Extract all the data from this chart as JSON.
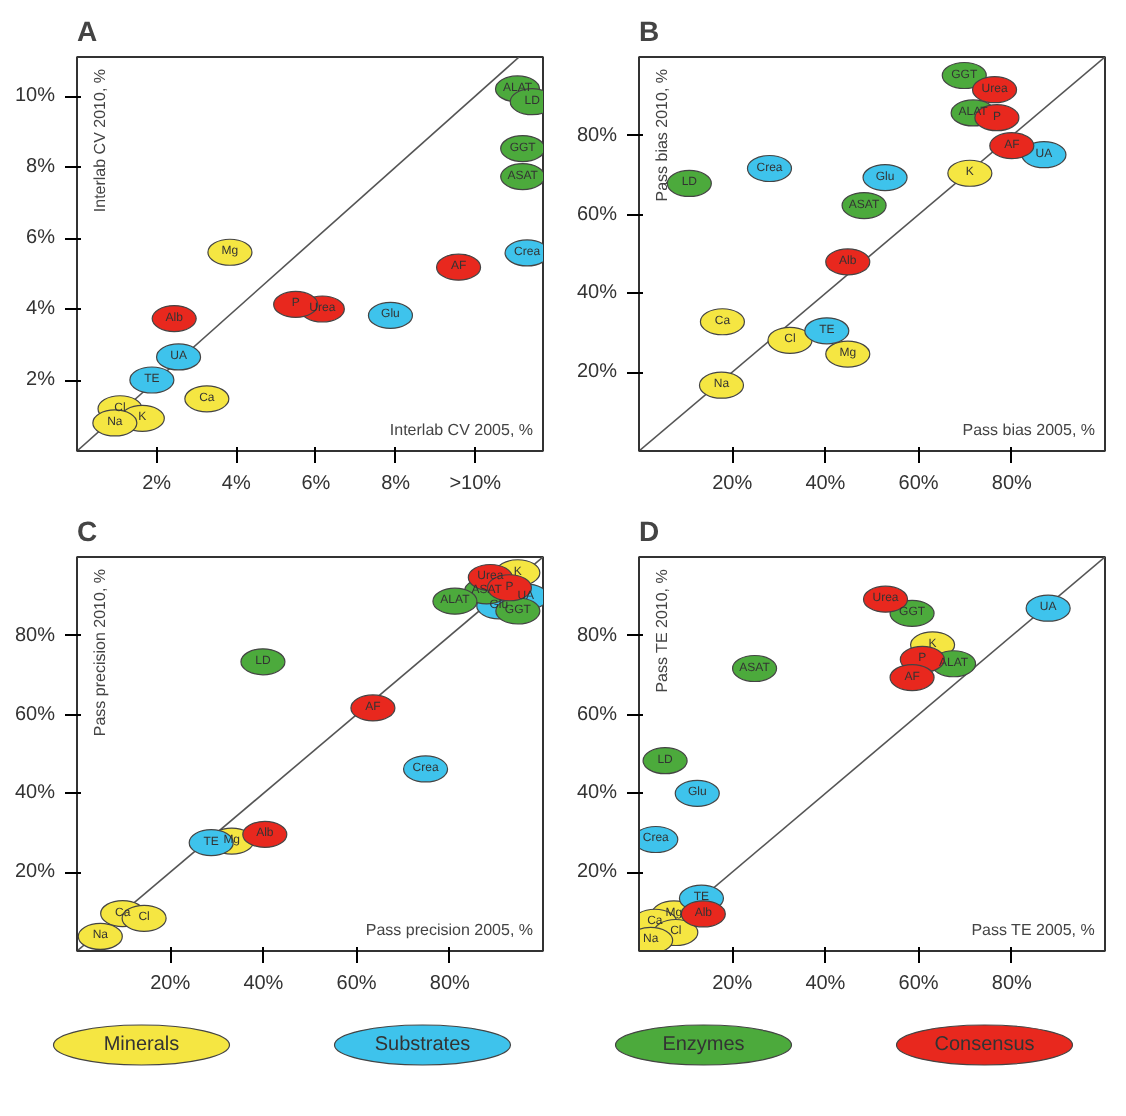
{
  "chart_data": [
    {
      "type": "scatter",
      "title": "A",
      "xlabel": "Interlab CV 2005, %",
      "ylabel": "Interlab CV 2010, %",
      "marker": "circle",
      "grid": false,
      "legend": false,
      "xlim": [
        0,
        11.7
      ],
      "ylim": [
        0,
        11.1
      ],
      "xticks": [
        {
          "value": 2,
          "label": "2%"
        },
        {
          "value": 4,
          "label": "4%"
        },
        {
          "value": 6,
          "label": "6%"
        },
        {
          "value": 8,
          "label": "8%"
        },
        {
          "value": 10,
          "label": ">10%"
        }
      ],
      "yticks": [
        {
          "value": 2,
          "label": "2%"
        },
        {
          "value": 4,
          "label": "4%"
        },
        {
          "value": 6,
          "label": "6%"
        },
        {
          "value": 8,
          "label": "8%"
        },
        {
          "value": 10,
          "label": "10%"
        }
      ],
      "series": [
        {
          "type": "line",
          "marker": "none",
          "color": "#555555",
          "x": [
            0,
            11.1
          ],
          "values": [
            0,
            11.1
          ]
        },
        {
          "color": "#f5e642",
          "x": [
            3.84,
            3.26,
            1.08,
            1.64,
            0.95
          ],
          "values": [
            5.6,
            1.47,
            1.19,
            0.92,
            0.79
          ],
          "value_labels": [
            "Mg",
            "Ca",
            "Cl",
            "K",
            "Na"
          ]
        },
        {
          "color": "#3ec3ec",
          "x": [
            11.3,
            7.87,
            2.55,
            1.88
          ],
          "values": [
            5.58,
            3.82,
            2.65,
            2.0
          ],
          "value_labels": [
            "Crea",
            "Glu",
            "UA",
            "TE"
          ]
        },
        {
          "color": "#4caa3c",
          "x": [
            11.06,
            11.43,
            11.19,
            11.19
          ],
          "values": [
            10.2,
            9.84,
            8.52,
            7.73
          ],
          "value_labels": [
            "ALAT",
            "LD",
            "GGT",
            "ASAT"
          ]
        },
        {
          "color": "#e8281e",
          "x": [
            9.58,
            6.16,
            5.49,
            2.44
          ],
          "values": [
            5.18,
            4.0,
            4.13,
            3.73
          ],
          "value_labels": [
            "AF",
            "Urea",
            "P",
            "Alb"
          ]
        }
      ]
    },
    {
      "type": "scatter",
      "title": "B",
      "xlabel": "Pass bias 2005, %",
      "ylabel": "Pass bias 2010, %",
      "marker": "circle",
      "grid": false,
      "legend": false,
      "xlim": [
        0,
        100
      ],
      "ylim": [
        0,
        100
      ],
      "xticks": [
        {
          "value": 20,
          "label": "20%"
        },
        {
          "value": 40,
          "label": "40%"
        },
        {
          "value": 60,
          "label": "60%"
        },
        {
          "value": 80,
          "label": "80%"
        }
      ],
      "yticks": [
        {
          "value": 20,
          "label": "20%"
        },
        {
          "value": 40,
          "label": "40%"
        },
        {
          "value": 60,
          "label": "60%"
        },
        {
          "value": 80,
          "label": "80%"
        }
      ],
      "series": [
        {
          "type": "line",
          "marker": "none",
          "color": "#555555",
          "x": [
            0,
            100
          ],
          "values": [
            0,
            100
          ]
        },
        {
          "color": "#f5e642",
          "x": [
            71.0,
            17.9,
            32.4,
            44.8,
            17.7
          ],
          "values": [
            70.5,
            32.8,
            28.1,
            24.6,
            16.7
          ],
          "value_labels": [
            "K",
            "Ca",
            "Cl",
            "Mg",
            "Na"
          ]
        },
        {
          "color": "#3ec3ec",
          "x": [
            86.9,
            52.8,
            28.0,
            40.3
          ],
          "values": [
            75.2,
            69.4,
            71.7,
            30.5
          ],
          "value_labels": [
            "UA",
            "Glu",
            "Crea",
            "TE"
          ]
        },
        {
          "color": "#4caa3c",
          "x": [
            69.8,
            71.7,
            10.8,
            48.3
          ],
          "values": [
            95.3,
            85.8,
            67.9,
            62.3
          ],
          "value_labels": [
            "GGT",
            "ALAT",
            "LD",
            "ASAT"
          ]
        },
        {
          "color": "#e8281e",
          "x": [
            76.3,
            76.8,
            80.0,
            44.8
          ],
          "values": [
            91.7,
            84.6,
            77.5,
            48.0
          ],
          "value_labels": [
            "Urea",
            "P",
            "AF",
            "Alb"
          ]
        }
      ]
    },
    {
      "type": "scatter",
      "title": "C",
      "xlabel": "Pass precision 2005, %",
      "ylabel": "Pass precision 2010, %",
      "marker": "circle",
      "grid": false,
      "legend": false,
      "xlim": [
        0,
        100
      ],
      "ylim": [
        0,
        100
      ],
      "xticks": [
        {
          "value": 20,
          "label": "20%"
        },
        {
          "value": 40,
          "label": "40%"
        },
        {
          "value": 60,
          "label": "60%"
        },
        {
          "value": 80,
          "label": "80%"
        }
      ],
      "yticks": [
        {
          "value": 20,
          "label": "20%"
        },
        {
          "value": 40,
          "label": "40%"
        },
        {
          "value": 60,
          "label": "60%"
        },
        {
          "value": 80,
          "label": "80%"
        }
      ],
      "series": [
        {
          "type": "line",
          "marker": "none",
          "color": "#555555",
          "x": [
            0,
            100
          ],
          "values": [
            0,
            100
          ]
        },
        {
          "color": "#f5e642",
          "x": [
            94.6,
            33.2,
            9.8,
            14.4,
            5.0
          ],
          "values": [
            96,
            27.9,
            9.5,
            8.3,
            3.7
          ],
          "value_labels": [
            "K",
            "Mg",
            "Ca",
            "Cl",
            "Na"
          ]
        },
        {
          "color": "#3ec3ec",
          "x": [
            96.3,
            90.5,
            74.8,
            28.8
          ],
          "values": [
            89.9,
            87.6,
            46.2,
            27.5
          ],
          "value_labels": [
            "UA",
            "Glu",
            "Crea",
            "TE"
          ]
        },
        {
          "color": "#4caa3c",
          "x": [
            87.9,
            81.1,
            94.6,
            39.9
          ],
          "values": [
            91.4,
            88.8,
            86.3,
            73.4
          ],
          "value_labels": [
            "ASAT",
            "ALAT",
            "GGT",
            "LD"
          ]
        },
        {
          "color": "#e8281e",
          "x": [
            88.7,
            92.8,
            63.5,
            40.3
          ],
          "values": [
            94.8,
            92.2,
            61.7,
            29.6
          ],
          "value_labels": [
            "Urea",
            "P",
            "AF",
            "Alb"
          ]
        }
      ]
    },
    {
      "type": "scatter",
      "title": "D",
      "xlabel": "Pass TE 2005, %",
      "ylabel": "Pass TE 2010, %",
      "marker": "circle",
      "grid": false,
      "legend": "bottom",
      "xlim": [
        0,
        100
      ],
      "ylim": [
        0,
        100
      ],
      "xticks": [
        {
          "value": 20,
          "label": "20%"
        },
        {
          "value": 40,
          "label": "40%"
        },
        {
          "value": 60,
          "label": "60%"
        },
        {
          "value": 80,
          "label": "80%"
        }
      ],
      "yticks": [
        {
          "value": 20,
          "label": "20%"
        },
        {
          "value": 40,
          "label": "40%"
        },
        {
          "value": 60,
          "label": "60%"
        },
        {
          "value": 80,
          "label": "80%"
        }
      ],
      "series": [
        {
          "type": "line",
          "marker": "none",
          "color": "#555555",
          "x": [
            0,
            100
          ],
          "values": [
            0,
            100
          ]
        },
        {
          "name": "Minerals",
          "color": "#f5e642",
          "x": [
            63.0,
            7.5,
            3.4,
            7.9,
            2.5
          ],
          "values": [
            77.7,
            9.4,
            7.3,
            4.7,
            2.7
          ],
          "value_labels": [
            "K",
            "Mg",
            "Ca",
            "Cl",
            "Na"
          ]
        },
        {
          "name": "Substrates",
          "color": "#3ec3ec",
          "x": [
            87.8,
            12.5,
            3.6,
            13.4
          ],
          "values": [
            87.0,
            40.0,
            28.3,
            13.4
          ],
          "value_labels": [
            "UA",
            "Glu",
            "Crea",
            "TE"
          ]
        },
        {
          "name": "Enzymes",
          "color": "#4caa3c",
          "x": [
            58.6,
            67.5,
            24.8,
            5.6
          ],
          "values": [
            85.7,
            72.9,
            71.7,
            48.3
          ],
          "value_labels": [
            "GGT",
            "ALAT",
            "ASAT",
            "LD"
          ]
        },
        {
          "name": "Consensus",
          "color": "#e8281e",
          "x": [
            52.9,
            60.8,
            58.6,
            13.8
          ],
          "values": [
            89.3,
            74.0,
            69.4,
            9.4
          ],
          "value_labels": [
            "Urea",
            "P",
            "AF",
            "Alb"
          ]
        }
      ]
    }
  ]
}
